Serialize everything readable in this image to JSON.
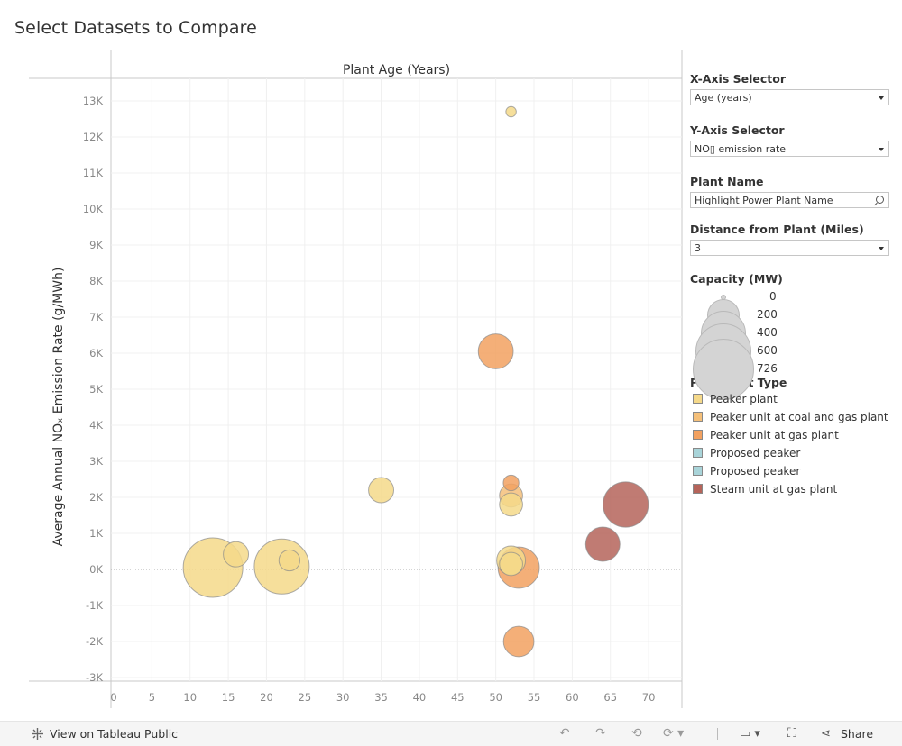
{
  "page": {
    "title": "Select Datasets to Compare"
  },
  "chart_data": {
    "type": "scatter",
    "title": "",
    "xlabel": "Plant Age (Years)",
    "ylabel": "Average Annual NOₓ Emission Rate (g/MWh)",
    "xlim": [
      0,
      74
    ],
    "ylim": [
      -3300,
      13500
    ],
    "x_ticks": [
      0,
      5,
      10,
      15,
      20,
      25,
      30,
      35,
      40,
      45,
      50,
      55,
      60,
      65,
      70
    ],
    "y_ticks": [
      -3000,
      -2000,
      -1000,
      0,
      1000,
      2000,
      3000,
      4000,
      5000,
      6000,
      7000,
      8000,
      9000,
      10000,
      11000,
      12000,
      13000
    ],
    "y_tick_labels": [
      "-3K",
      "-2K",
      "-1K",
      "0K",
      "1K",
      "2K",
      "3K",
      "4K",
      "5K",
      "6K",
      "7K",
      "8K",
      "9K",
      "10K",
      "11K",
      "12K",
      "13K"
    ],
    "grid": true,
    "size_encoding": "Capacity (MW)",
    "color_encoding": "Plant Unit Type",
    "points": [
      {
        "x": 13,
        "y": 50,
        "capacity_mw": 726,
        "type": "Peaker plant"
      },
      {
        "x": 22,
        "y": 80,
        "capacity_mw": 620,
        "type": "Peaker plant"
      },
      {
        "x": 16,
        "y": 420,
        "capacity_mw": 130,
        "type": "Peaker plant"
      },
      {
        "x": 23,
        "y": 250,
        "capacity_mw": 90,
        "type": "Peaker plant"
      },
      {
        "x": 35,
        "y": 2200,
        "capacity_mw": 130,
        "type": "Peaker plant"
      },
      {
        "x": 52,
        "y": 12700,
        "capacity_mw": 22,
        "type": "Peaker plant"
      },
      {
        "x": 50,
        "y": 6050,
        "capacity_mw": 250,
        "type": "Peaker unit at gas plant"
      },
      {
        "x": 52,
        "y": 2400,
        "capacity_mw": 50,
        "type": "Peaker unit at gas plant"
      },
      {
        "x": 52,
        "y": 2050,
        "capacity_mw": 110,
        "type": "Peaker unit at coal and gas plant"
      },
      {
        "x": 52,
        "y": 1800,
        "capacity_mw": 110,
        "type": "Peaker plant"
      },
      {
        "x": 53,
        "y": 50,
        "capacity_mw": 350,
        "type": "Peaker unit at gas plant"
      },
      {
        "x": 52,
        "y": 250,
        "capacity_mw": 170,
        "type": "Peaker plant"
      },
      {
        "x": 52,
        "y": 150,
        "capacity_mw": 110,
        "type": "Peaker plant"
      },
      {
        "x": 53,
        "y": -2000,
        "capacity_mw": 190,
        "type": "Peaker unit at gas plant"
      },
      {
        "x": 64,
        "y": 700,
        "capacity_mw": 240,
        "type": "Steam unit at gas plant"
      },
      {
        "x": 67,
        "y": 1800,
        "capacity_mw": 420,
        "type": "Steam unit at gas plant"
      }
    ],
    "colors": {
      "Peaker plant": "#f5d98a",
      "Peaker unit at coal and gas plant": "#f5c07a",
      "Peaker unit at gas plant": "#f2a160",
      "Proposed peaker": "#a9d4d9",
      "Steam unit at gas plant": "#b5645a"
    }
  },
  "controls": {
    "x_axis_selector": {
      "label": "X-Axis Selector",
      "value": "Age (years)"
    },
    "y_axis_selector": {
      "label": "Y-Axis Selector",
      "value": "NO▯ emission rate"
    },
    "plant_name": {
      "label": "Plant Name",
      "placeholder": "Highlight Power Plant Name"
    },
    "distance": {
      "label": "Distance from Plant (Miles)",
      "value": "3"
    }
  },
  "legend_capacity": {
    "title": "Capacity (MW)",
    "items": [
      {
        "label": "0",
        "value": 0
      },
      {
        "label": "200",
        "value": 200
      },
      {
        "label": "400",
        "value": 400
      },
      {
        "label": "600",
        "value": 600
      },
      {
        "label": "726",
        "value": 726
      }
    ]
  },
  "legend_type": {
    "title": "Plant Unit Type",
    "items": [
      {
        "label": "Peaker plant",
        "color": "#f5d98a"
      },
      {
        "label": "Peaker unit at coal and gas plant",
        "color": "#f5c07a"
      },
      {
        "label": "Peaker unit at gas plant",
        "color": "#f2a160"
      },
      {
        "label": "Proposed peaker",
        "color": "#a9d4d9"
      },
      {
        "label": "Proposed peaker",
        "color": "#a9d4d9"
      },
      {
        "label": "Steam unit at gas plant",
        "color": "#b5645a"
      }
    ]
  },
  "toolbar": {
    "view_label": "View on Tableau Public",
    "share_label": "Share",
    "icons": [
      "tableau-icon",
      "undo-icon",
      "redo-icon",
      "revert-icon",
      "refresh-icon",
      "download-icon",
      "fullscreen-icon",
      "share-icon"
    ]
  }
}
